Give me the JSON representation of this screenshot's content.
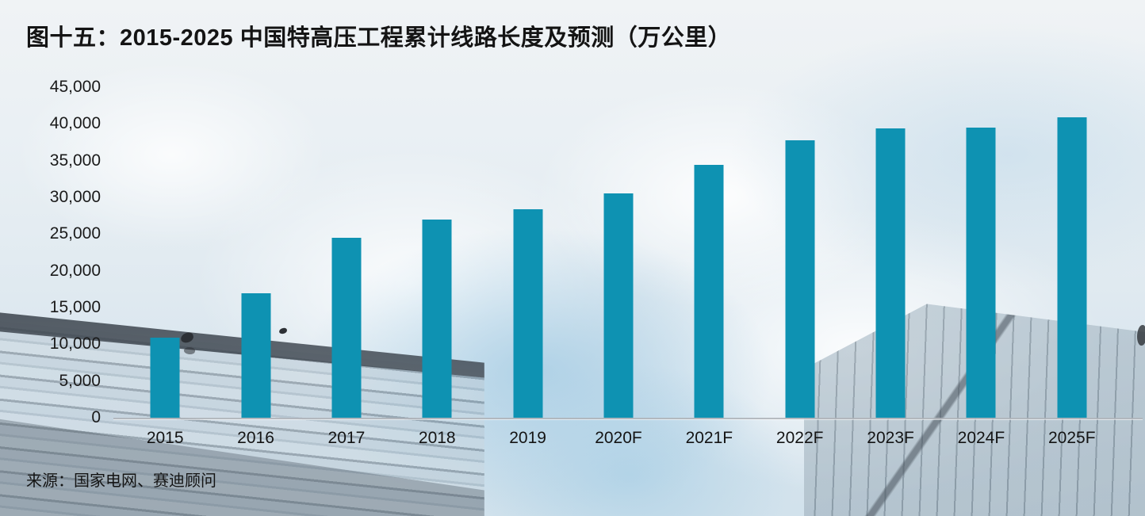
{
  "figure": {
    "title": "图十五：2015-2025 中国特高压工程累计线路长度及预测（万公里）",
    "source": "来源：国家电网、赛迪顾问"
  },
  "colors": {
    "bar": "#0E92B2",
    "text": "#141414",
    "axis_line": "#B0B5BA"
  },
  "chart_data": {
    "type": "bar",
    "title": "图十五：2015-2025 中国特高压工程累计线路长度及预测（万公里）",
    "source": "来源：国家电网、赛迪顾问",
    "categories": [
      "2015",
      "2016",
      "2017",
      "2018",
      "2019",
      "2020F",
      "2021F",
      "2022F",
      "2023F",
      "2024F",
      "2025F"
    ],
    "values": [
      10900,
      16900,
      24500,
      27000,
      28400,
      30500,
      34400,
      37800,
      39400,
      39500,
      40900
    ],
    "xlabel": "",
    "ylabel": "",
    "ylim": [
      0,
      45000
    ],
    "ytick_step": 5000,
    "ytick_labels": [
      "0",
      "5,000",
      "10,000",
      "15,000",
      "20,000",
      "25,000",
      "30,000",
      "35,000",
      "40,000",
      "45,000"
    ],
    "grid": false,
    "legend_position": "none",
    "bar_color": "#0E92B2",
    "background": "photo-of-skyscrapers-looking-up-at-sky"
  }
}
